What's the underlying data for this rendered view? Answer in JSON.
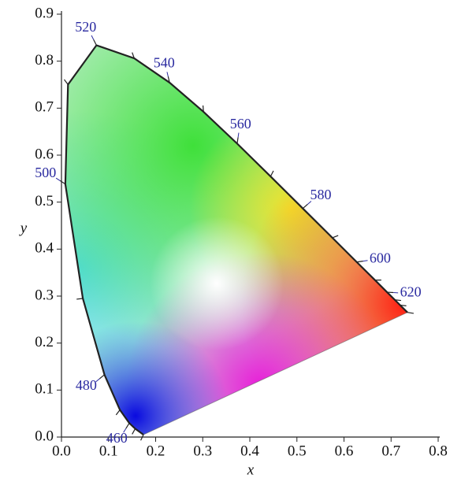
{
  "chart_data": {
    "type": "line",
    "xlabel": "x",
    "ylabel": "y",
    "x": [
      0.1741,
      0.1566,
      0.144,
      0.1241,
      0.0913,
      0.0454,
      0.0082,
      0.0139,
      0.0743,
      0.1547,
      0.2296,
      0.3016,
      0.3731,
      0.4441,
      0.5125,
      0.5752,
      0.627,
      0.6658,
      0.6915,
      0.7079,
      0.719,
      0.7347
    ],
    "values": [
      0.005,
      0.0177,
      0.0297,
      0.0578,
      0.1327,
      0.295,
      0.5384,
      0.7502,
      0.8338,
      0.8059,
      0.7543,
      0.6923,
      0.6245,
      0.5547,
      0.4866,
      0.4242,
      0.3725,
      0.334,
      0.3083,
      0.292,
      0.2809,
      0.2653
    ],
    "point_labels": [
      null,
      null,
      460,
      null,
      480,
      null,
      500,
      null,
      520,
      null,
      540,
      null,
      560,
      null,
      580,
      null,
      600,
      null,
      620,
      null,
      null,
      null
    ],
    "color": "#222222",
    "label_color": "#2a2aa0",
    "xlim": [
      0,
      0.8
    ],
    "ylim": [
      0,
      0.9
    ],
    "xticks": [
      {
        "value": 0,
        "label": "0.0"
      },
      0.1,
      0.2,
      0.3,
      0.4,
      0.5,
      0.6,
      0.7,
      0.8
    ],
    "yticks": [
      {
        "value": 0,
        "label": "0.0"
      },
      0.1,
      0.2,
      0.3,
      0.4,
      0.5,
      0.6,
      0.7,
      0.8,
      0.9
    ]
  }
}
